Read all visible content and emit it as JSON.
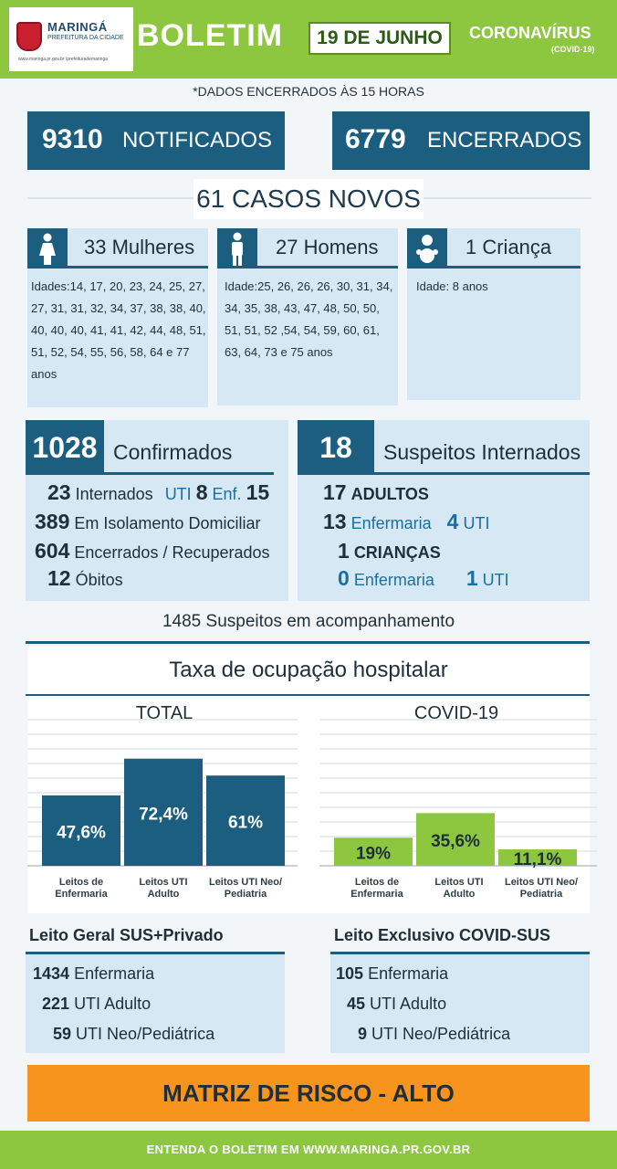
{
  "header": {
    "logo_name": "MARINGÁ",
    "logo_sub": "PREFEITURA DA CIDADE",
    "logo_social": "www.maringa.pr.gov.br  /prefeiturademaringa",
    "title": "BOLETIM",
    "date": "19 DE JUNHO",
    "covid_title": "CORONAVÍRUS",
    "covid_sub": "(COVID-19)"
  },
  "note": "*DADOS ENCERRADOS ÀS 15 HORAS",
  "totals": {
    "notificados_num": "9310",
    "notificados_label": "NOTIFICADOS",
    "encerrados_num": "6779",
    "encerrados_label": "ENCERRADOS"
  },
  "casos_novos": "61 CASOS NOVOS",
  "women": {
    "label": "33 Mulheres",
    "ages": "Idades:14, 17, 20, 23, 24, 25, 27, 27, 31, 31, 32, 34, 37, 38, 38, 40, 40, 40, 40, 41, 41, 42, 44, 48, 51, 51, 52, 54, 55, 56, 58, 64 e 77 anos"
  },
  "men": {
    "label": "27 Homens",
    "ages": "Idade:25, 26, 26, 26, 30, 31, 34, 34, 35, 38, 43, 47, 48, 50, 50, 51, 51, 52 ,54, 54, 59, 60, 61, 63, 64, 73 e 75 anos"
  },
  "child": {
    "label": "1 Criança",
    "ages": "Idade: 8 anos"
  },
  "confirmados": {
    "num": "1028",
    "label": "Confirmados",
    "internados_num": "23",
    "internados_label": "Internados",
    "uti_label": "UTI",
    "uti_num": "8",
    "enf_label": "Enf.",
    "enf_num": "15",
    "isolamento_num": "389",
    "isolamento_label": "Em Isolamento Domiciliar",
    "recuperados_num": "604",
    "recuperados_label": "Encerrados / Recuperados",
    "obitos_num": "12",
    "obitos_label": "Óbitos"
  },
  "suspeitos": {
    "num": "18",
    "label": "Suspeitos Internados",
    "adultos_num": "17",
    "adultos_label": "ADULTOS",
    "adultos_enf_num": "13",
    "enf_label": "Enfermaria",
    "adultos_uti_num": "4",
    "uti_label": "UTI",
    "criancas_num": "1",
    "criancas_label": "CRIANÇAS",
    "criancas_enf_num": "0",
    "criancas_uti_num": "1"
  },
  "acompanhamento": "1485 Suspeitos em acompanhamento",
  "taxa_title": "Taxa de ocupação hospitalar",
  "chart_data": [
    {
      "type": "bar",
      "title": "TOTAL",
      "categories": [
        "Leitos de Enfermaria",
        "Leitos UTI Adulto",
        "Leitos UTI Neo/ Pediatria"
      ],
      "values": [
        47.6,
        72.4,
        61
      ],
      "value_labels": [
        "47,6%",
        "72,4%",
        "61%"
      ],
      "color": "#1b5e80",
      "ylim": [
        0,
        100
      ],
      "grid": true
    },
    {
      "type": "bar",
      "title": "COVID-19",
      "categories": [
        "Leitos de Enfermaria",
        "Leitos UTI Adulto",
        "Leitos UTI Neo/ Pediatria"
      ],
      "values": [
        19,
        35.6,
        11.1
      ],
      "value_labels": [
        "19%",
        "35,6%",
        "11,1%"
      ],
      "color": "#8dc63f",
      "ylim": [
        0,
        100
      ],
      "grid": true
    }
  ],
  "leito_geral": {
    "title": "Leito Geral SUS+Privado",
    "rows": [
      {
        "num": "1434",
        "label": "Enfermaria"
      },
      {
        "num": "221",
        "label": "UTI Adulto"
      },
      {
        "num": "59",
        "label": "UTI Neo/Pediátrica"
      }
    ]
  },
  "leito_covid": {
    "title": "Leito Exclusivo COVID-SUS",
    "rows": [
      {
        "num": "105",
        "label": "Enfermaria"
      },
      {
        "num": "45",
        "label": "UTI Adulto"
      },
      {
        "num": "9",
        "label": "UTI Neo/Pediátrica"
      }
    ]
  },
  "risco": "MATRIZ DE RISCO - ALTO",
  "footer": "ENTENDA O BOLETIM EM WWW.MARINGA.PR.GOV.BR",
  "colors": {
    "green": "#8dc63f",
    "blue": "#1b5e80",
    "light_blue": "#d5e8f3",
    "orange": "#f7941d"
  }
}
